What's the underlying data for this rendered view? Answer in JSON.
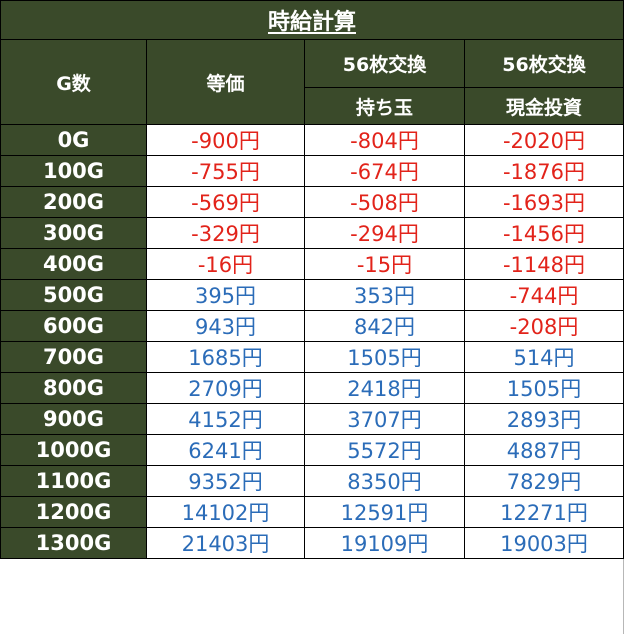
{
  "title": "時給計算",
  "headers": {
    "g": "G数",
    "equal": "等価",
    "col2_line1": "56枚交換",
    "col2_line2": "持ち玉",
    "col3_line1": "56枚交換",
    "col3_line2": "現金投資"
  },
  "rows": [
    {
      "g": "0G",
      "equal": "-900円",
      "mochi": "-804円",
      "genkin": "-2020円"
    },
    {
      "g": "100G",
      "equal": "-755円",
      "mochi": "-674円",
      "genkin": "-1876円"
    },
    {
      "g": "200G",
      "equal": "-569円",
      "mochi": "-508円",
      "genkin": "-1693円"
    },
    {
      "g": "300G",
      "equal": "-329円",
      "mochi": "-294円",
      "genkin": "-1456円"
    },
    {
      "g": "400G",
      "equal": "-16円",
      "mochi": "-15円",
      "genkin": "-1148円"
    },
    {
      "g": "500G",
      "equal": "395円",
      "mochi": "353円",
      "genkin": "-744円"
    },
    {
      "g": "600G",
      "equal": "943円",
      "mochi": "842円",
      "genkin": "-208円"
    },
    {
      "g": "700G",
      "equal": "1685円",
      "mochi": "1505円",
      "genkin": "514円"
    },
    {
      "g": "800G",
      "equal": "2709円",
      "mochi": "2418円",
      "genkin": "1505円"
    },
    {
      "g": "900G",
      "equal": "4152円",
      "mochi": "3707円",
      "genkin": "2893円"
    },
    {
      "g": "1000G",
      "equal": "6241円",
      "mochi": "5572円",
      "genkin": "4887円"
    },
    {
      "g": "1100G",
      "equal": "9352円",
      "mochi": "8350円",
      "genkin": "7829円"
    },
    {
      "g": "1200G",
      "equal": "14102円",
      "mochi": "12591円",
      "genkin": "12271円"
    },
    {
      "g": "1300G",
      "equal": "21403円",
      "mochi": "19109円",
      "genkin": "19003円"
    }
  ],
  "colors": {
    "header_bg": "#3a4a2a",
    "negative": "#e2231a",
    "positive": "#2b6cb8"
  }
}
